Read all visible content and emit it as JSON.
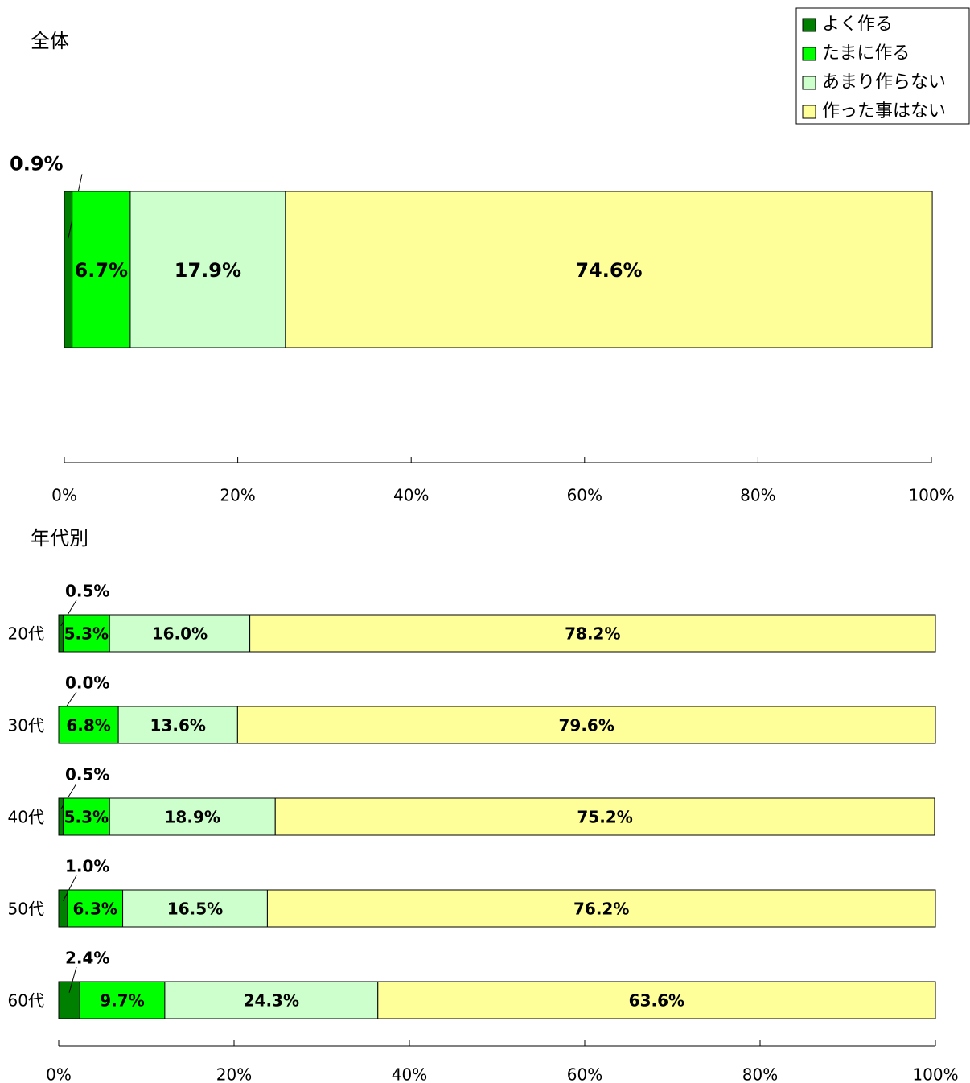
{
  "chart_data": [
    {
      "type": "stacked-bar-horizontal",
      "title": "全体",
      "categories": [
        null
      ],
      "series": [
        {
          "name": "よく作る",
          "color": "#008000",
          "values": [
            0.9
          ],
          "value_labels": [
            "0.9%"
          ]
        },
        {
          "name": "たまに作る",
          "color": "#00ff00",
          "values": [
            6.7
          ],
          "value_labels": [
            "6.7%"
          ]
        },
        {
          "name": "あまり作らない",
          "color": "#ccffcc",
          "values": [
            17.9
          ],
          "value_labels": [
            "17.9%"
          ]
        },
        {
          "name": "作った事はない",
          "color": "#ffff99",
          "values": [
            74.6
          ],
          "value_labels": [
            "74.6%"
          ]
        }
      ],
      "xlim": [
        0,
        100
      ],
      "xticks": [
        {
          "value": 0,
          "label": "0%"
        },
        {
          "value": 20,
          "label": "20%"
        },
        {
          "value": 40,
          "label": "40%"
        },
        {
          "value": 60,
          "label": "60%"
        },
        {
          "value": 80,
          "label": "80%"
        },
        {
          "value": 100,
          "label": "100%"
        }
      ],
      "legend": "upper right"
    },
    {
      "type": "stacked-bar-horizontal",
      "title": "年代別",
      "categories": [
        "20代",
        "30代",
        "40代",
        "50代",
        "60代"
      ],
      "series": [
        {
          "color": "#008000",
          "values": [
            0.5,
            0.0,
            0.5,
            1.0,
            2.4
          ],
          "value_labels": [
            "0.5%",
            "0.0%",
            "0.5%",
            "1.0%",
            "2.4%"
          ]
        },
        {
          "color": "#00ff00",
          "values": [
            5.3,
            6.8,
            5.3,
            6.3,
            9.7
          ],
          "value_labels": [
            "5.3%",
            "6.8%",
            "5.3%",
            "6.3%",
            "9.7%"
          ]
        },
        {
          "color": "#ccffcc",
          "values": [
            16.0,
            13.6,
            18.9,
            16.5,
            24.3
          ],
          "value_labels": [
            "16.0%",
            "13.6%",
            "18.9%",
            "16.5%",
            "24.3%"
          ]
        },
        {
          "color": "#ffff99",
          "values": [
            78.2,
            79.6,
            75.2,
            76.2,
            63.6
          ],
          "value_labels": [
            "78.2%",
            "79.6%",
            "75.2%",
            "76.2%",
            "63.6%"
          ]
        }
      ],
      "xlim": [
        0,
        100
      ],
      "xticks": [
        {
          "value": 0,
          "label": "0%"
        },
        {
          "value": 20,
          "label": "20%"
        },
        {
          "value": 40,
          "label": "40%"
        },
        {
          "value": 60,
          "label": "60%"
        },
        {
          "value": 80,
          "label": "80%"
        },
        {
          "value": 100,
          "label": "100%"
        }
      ]
    }
  ]
}
